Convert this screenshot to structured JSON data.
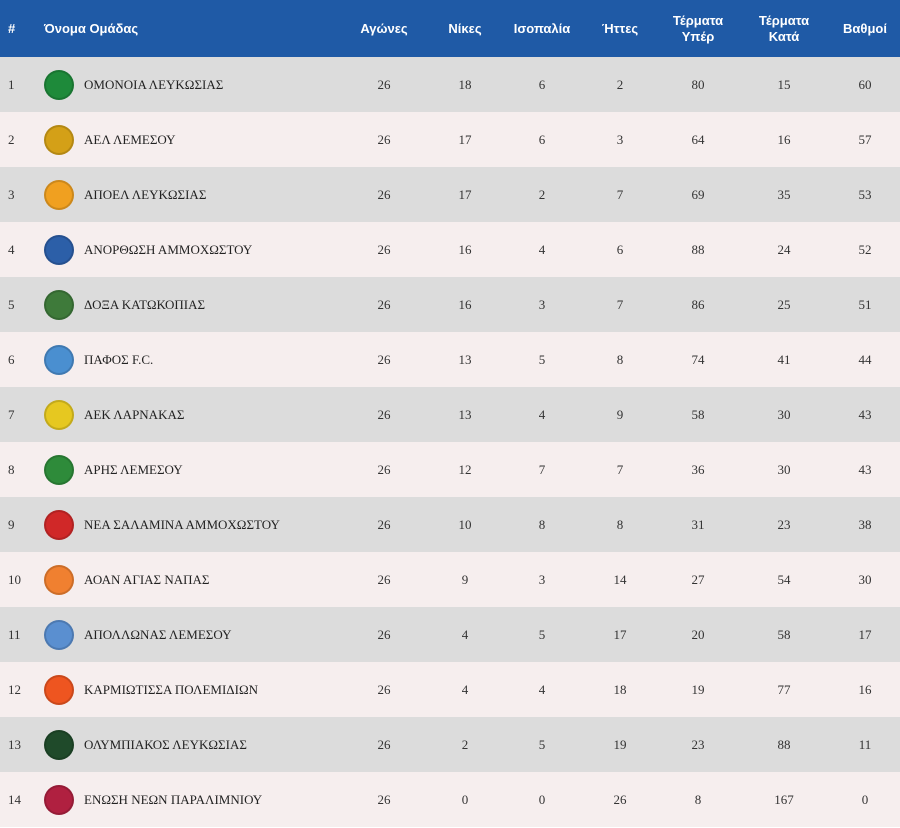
{
  "header": {
    "rank": "#",
    "team": "Όνομα Ομάδας",
    "played": "Αγώνες",
    "wins": "Νίκες",
    "draws": "Ισοπαλία",
    "losses": "Ήττες",
    "goals_for_1": "Τέρματα",
    "goals_for_2": "Υπέρ",
    "goals_against_1": "Τέρματα",
    "goals_against_2": "Κατά",
    "points": "Βαθμοί"
  },
  "rows": [
    {
      "rank": "1",
      "team": "ΟΜΟΝΟΙΑ ΛΕΥΚΩΣΙΑΣ",
      "logo_icon": "omonoia-crest-icon",
      "logo_color": "#1e8a3a",
      "played": "26",
      "wins": "18",
      "draws": "6",
      "losses": "2",
      "gf": "80",
      "ga": "15",
      "pts": "60"
    },
    {
      "rank": "2",
      "team": "ΑΕΛ ΛΕΜΕΣΟΥ",
      "logo_icon": "ael-crest-icon",
      "logo_color": "#d4a017",
      "played": "26",
      "wins": "17",
      "draws": "6",
      "losses": "3",
      "gf": "64",
      "ga": "16",
      "pts": "57"
    },
    {
      "rank": "3",
      "team": "ΑΠΟΕΛ ΛΕΥΚΩΣΙΑΣ",
      "logo_icon": "apoel-crest-icon",
      "logo_color": "#f0a020",
      "played": "26",
      "wins": "17",
      "draws": "2",
      "losses": "7",
      "gf": "69",
      "ga": "35",
      "pts": "53"
    },
    {
      "rank": "4",
      "team": "ΑΝΟΡΘΩΣΗ ΑΜΜΟΧΩΣΤΟΥ",
      "logo_icon": "anorthosis-crest-icon",
      "logo_color": "#2c5fa8",
      "played": "26",
      "wins": "16",
      "draws": "4",
      "losses": "6",
      "gf": "88",
      "ga": "24",
      "pts": "52"
    },
    {
      "rank": "5",
      "team": "ΔΟΞΑ ΚΑΤΩΚΟΠΙΑΣ",
      "logo_icon": "doxa-crest-icon",
      "logo_color": "#3e7a3a",
      "played": "26",
      "wins": "16",
      "draws": "3",
      "losses": "7",
      "gf": "86",
      "ga": "25",
      "pts": "51"
    },
    {
      "rank": "6",
      "team": "ΠΑΦΟΣ F.C.",
      "logo_icon": "pafos-crest-icon",
      "logo_color": "#4a8fd0",
      "played": "26",
      "wins": "13",
      "draws": "5",
      "losses": "8",
      "gf": "74",
      "ga": "41",
      "pts": "44"
    },
    {
      "rank": "7",
      "team": "ΑΕΚ ΛΑΡΝΑΚΑΣ",
      "logo_icon": "aek-crest-icon",
      "logo_color": "#e6c820",
      "played": "26",
      "wins": "13",
      "draws": "4",
      "losses": "9",
      "gf": "58",
      "ga": "30",
      "pts": "43"
    },
    {
      "rank": "8",
      "team": "ΑΡΗΣ ΛΕΜΕΣΟΥ",
      "logo_icon": "aris-crest-icon",
      "logo_color": "#2e8b3a",
      "played": "26",
      "wins": "12",
      "draws": "7",
      "losses": "7",
      "gf": "36",
      "ga": "30",
      "pts": "43"
    },
    {
      "rank": "9",
      "team": "ΝΕΑ ΣΑΛΑΜΙΝΑ ΑΜΜΟΧΩΣΤΟΥ",
      "logo_icon": "nea-salamina-crest-icon",
      "logo_color": "#d02828",
      "played": "26",
      "wins": "10",
      "draws": "8",
      "losses": "8",
      "gf": "31",
      "ga": "23",
      "pts": "38"
    },
    {
      "rank": "10",
      "team": "ΑΟΑΝ ΑΓΙΑΣ ΝΑΠΑΣ",
      "logo_icon": "aoan-crest-icon",
      "logo_color": "#f08030",
      "played": "26",
      "wins": "9",
      "draws": "3",
      "losses": "14",
      "gf": "27",
      "ga": "54",
      "pts": "30"
    },
    {
      "rank": "11",
      "team": "ΑΠΟΛΛΩΝΑΣ ΛΕΜΕΣΟΥ",
      "logo_icon": "apollon-crest-icon",
      "logo_color": "#5a8fd0",
      "played": "26",
      "wins": "4",
      "draws": "5",
      "losses": "17",
      "gf": "20",
      "ga": "58",
      "pts": "17"
    },
    {
      "rank": "12",
      "team": "ΚΑΡΜΙΩΤΙΣΣΑ ΠΟΛΕΜΙΔΙΩΝ",
      "logo_icon": "karmiotissa-crest-icon",
      "logo_color": "#ee5520",
      "played": "26",
      "wins": "4",
      "draws": "4",
      "losses": "18",
      "gf": "19",
      "ga": "77",
      "pts": "16"
    },
    {
      "rank": "13",
      "team": "ΟΛΥΜΠΙΑΚΟΣ ΛΕΥΚΩΣΙΑΣ",
      "logo_icon": "olympiakos-crest-icon",
      "logo_color": "#1f4a2a",
      "played": "26",
      "wins": "2",
      "draws": "5",
      "losses": "19",
      "gf": "23",
      "ga": "88",
      "pts": "11"
    },
    {
      "rank": "14",
      "team": "ΕΝΩΣΗ ΝΕΩΝ ΠΑΡΑΛΙΜΝΙΟΥ",
      "logo_icon": "enp-crest-icon",
      "logo_color": "#b02040",
      "played": "26",
      "wins": "0",
      "draws": "0",
      "losses": "26",
      "gf": "8",
      "ga": "167",
      "pts": "0"
    }
  ]
}
